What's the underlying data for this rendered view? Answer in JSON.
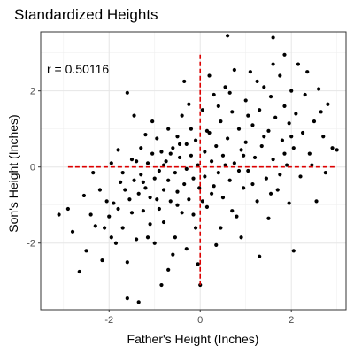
{
  "chart_data": {
    "type": "scatter",
    "title": "Standardized Heights",
    "xlabel": "Father's Height (Inches)",
    "ylabel": "Son's Height (Inches)",
    "annotation": "r = 0.50116",
    "xlim": [
      -3.5,
      3.2
    ],
    "ylim": [
      -3.75,
      3.55
    ],
    "x_ticks": [
      -2,
      0,
      2
    ],
    "y_ticks": [
      -2,
      0,
      2
    ],
    "x_tick_labels": [
      "-2",
      "0",
      "2"
    ],
    "y_tick_labels": [
      "-2",
      "0",
      "2"
    ],
    "grid": true,
    "point_color": "#000000",
    "reference_line_color": "#dd0000",
    "reference_lines": {
      "horizontal": {
        "y": 0,
        "x_from": -2.9,
        "x_to": 3.0
      },
      "vertical": {
        "x": 0,
        "y_from": -3.1,
        "y_to": 2.95
      }
    },
    "points": [
      [
        -3.1,
        -1.25
      ],
      [
        -2.9,
        -1.1
      ],
      [
        -2.8,
        -1.7
      ],
      [
        -2.65,
        -2.75
      ],
      [
        -2.5,
        -2.2
      ],
      [
        -2.4,
        -1.25
      ],
      [
        -2.3,
        -1.55
      ],
      [
        -2.2,
        -0.6
      ],
      [
        -2.15,
        -2.45
      ],
      [
        -2.05,
        -0.9
      ],
      [
        -2.0,
        -1.3
      ],
      [
        -1.95,
        -1.85
      ],
      [
        -1.9,
        -0.95
      ],
      [
        -1.85,
        -2.0
      ],
      [
        -1.8,
        -1.1
      ],
      [
        -1.75,
        -0.4
      ],
      [
        -1.7,
        -1.6
      ],
      [
        -1.65,
        -0.6
      ],
      [
        -1.6,
        -2.5
      ],
      [
        -1.55,
        -0.85
      ],
      [
        -1.5,
        0.2
      ],
      [
        -1.5,
        -1.2
      ],
      [
        -1.45,
        -0.35
      ],
      [
        -1.4,
        -1.9
      ],
      [
        -1.35,
        -0.7
      ],
      [
        -1.3,
        0.5
      ],
      [
        -1.3,
        -0.2
      ],
      [
        -1.25,
        -1.15
      ],
      [
        -1.2,
        -0.55
      ],
      [
        -1.15,
        0.1
      ],
      [
        -1.1,
        -1.5
      ],
      [
        -1.1,
        -0.8
      ],
      [
        -1.05,
        0.35
      ],
      [
        -1.0,
        -0.3
      ],
      [
        -1.0,
        -2.0
      ],
      [
        -0.95,
        0.75
      ],
      [
        -0.9,
        -0.1
      ],
      [
        -0.9,
        -1.1
      ],
      [
        -0.85,
        0.4
      ],
      [
        -0.8,
        -0.6
      ],
      [
        -0.8,
        -1.45
      ],
      [
        -0.75,
        0.15
      ],
      [
        -0.7,
        -0.35
      ],
      [
        -0.7,
        1.0
      ],
      [
        -0.65,
        -0.9
      ],
      [
        -0.6,
        0.5
      ],
      [
        -0.6,
        -2.3
      ],
      [
        -0.55,
        -0.15
      ],
      [
        -0.5,
        0.8
      ],
      [
        -0.5,
        -0.65
      ],
      [
        -0.45,
        0.25
      ],
      [
        -0.4,
        -1.2
      ],
      [
        -0.4,
        1.35
      ],
      [
        -0.35,
        -0.45
      ],
      [
        -0.3,
        0.6
      ],
      [
        -0.3,
        -0.05
      ],
      [
        -0.25,
        -0.85
      ],
      [
        -0.2,
        1.0
      ],
      [
        -0.2,
        0.3
      ],
      [
        -0.15,
        -0.3
      ],
      [
        -0.1,
        0.7
      ],
      [
        -0.1,
        -1.6
      ],
      [
        -0.05,
        0.05
      ],
      [
        -0.02,
        -0.55
      ],
      [
        0.05,
        1.5
      ],
      [
        0.1,
        0.4
      ],
      [
        0.1,
        -0.25
      ],
      [
        0.15,
        -1.05
      ],
      [
        0.2,
        0.9
      ],
      [
        0.25,
        0.15
      ],
      [
        0.3,
        -0.5
      ],
      [
        0.3,
        1.9
      ],
      [
        0.35,
        0.55
      ],
      [
        0.4,
        -0.15
      ],
      [
        0.45,
        1.2
      ],
      [
        0.5,
        -0.8
      ],
      [
        0.5,
        0.3
      ],
      [
        0.55,
        2.1
      ],
      [
        0.6,
        0.75
      ],
      [
        0.65,
        -0.35
      ],
      [
        0.7,
        1.45
      ],
      [
        0.75,
        0.1
      ],
      [
        0.8,
        -1.3
      ],
      [
        0.85,
        1.0
      ],
      [
        0.9,
        0.45
      ],
      [
        0.95,
        -0.55
      ],
      [
        1.0,
        1.75
      ],
      [
        1.0,
        0.65
      ],
      [
        1.05,
        -0.1
      ],
      [
        1.1,
        2.5
      ],
      [
        1.15,
        1.1
      ],
      [
        1.2,
        0.25
      ],
      [
        1.25,
        -0.9
      ],
      [
        1.3,
        1.5
      ],
      [
        1.35,
        0.55
      ],
      [
        1.4,
        2.1
      ],
      [
        1.45,
        -0.3
      ],
      [
        1.5,
        0.95
      ],
      [
        1.55,
        1.85
      ],
      [
        1.6,
        0.2
      ],
      [
        1.65,
        1.3
      ],
      [
        1.7,
        -0.6
      ],
      [
        1.75,
        2.4
      ],
      [
        1.8,
        0.7
      ],
      [
        1.85,
        1.6
      ],
      [
        1.9,
        0.05
      ],
      [
        1.95,
        1.15
      ],
      [
        2.0,
        2.0
      ],
      [
        2.05,
        0.5
      ],
      [
        2.1,
        1.4
      ],
      [
        2.2,
        -0.25
      ],
      [
        2.25,
        0.9
      ],
      [
        2.3,
        1.9
      ],
      [
        2.4,
        0.35
      ],
      [
        2.5,
        1.2
      ],
      [
        2.6,
        2.05
      ],
      [
        2.7,
        0.8
      ],
      [
        2.8,
        1.65
      ],
      [
        2.9,
        0.5
      ],
      [
        2.55,
        -0.9
      ],
      [
        -1.6,
        1.95
      ],
      [
        -0.85,
        -3.1
      ],
      [
        0.0,
        -3.1
      ],
      [
        -1.6,
        -3.45
      ],
      [
        -1.35,
        -3.55
      ],
      [
        -0.7,
        -2.7
      ],
      [
        1.85,
        2.95
      ],
      [
        1.6,
        3.4
      ],
      [
        0.6,
        3.45
      ],
      [
        2.05,
        -2.2
      ],
      [
        -0.05,
        -2.55
      ],
      [
        0.9,
        -1.85
      ],
      [
        1.3,
        -2.35
      ],
      [
        2.35,
        2.5
      ],
      [
        -0.35,
        2.25
      ],
      [
        -2.35,
        -0.15
      ],
      [
        -1.95,
        0.1
      ],
      [
        -1.45,
        1.35
      ],
      [
        -1.2,
        0.85
      ],
      [
        0.35,
        -2.05
      ],
      [
        0.75,
        2.55
      ],
      [
        1.95,
        -0.95
      ],
      [
        2.15,
        2.7
      ],
      [
        -2.55,
        -0.75
      ],
      [
        -0.25,
        1.65
      ],
      [
        0.45,
        -1.6
      ],
      [
        1.5,
        -1.35
      ],
      [
        -1.05,
        1.2
      ],
      [
        0.65,
        1.95
      ],
      [
        1.25,
        2.25
      ],
      [
        -0.55,
        -1.85
      ],
      [
        1.75,
        -0.2
      ],
      [
        -1.8,
        0.45
      ],
      [
        0.15,
        0.95
      ],
      [
        0.85,
        -0.1
      ],
      [
        -0.15,
        -1.25
      ],
      [
        0.55,
        0.05
      ],
      [
        1.05,
        1.35
      ],
      [
        -0.45,
        0.6
      ],
      [
        1.4,
        0.8
      ],
      [
        -1.25,
        -0.4
      ],
      [
        0.25,
        -0.7
      ],
      [
        -0.65,
        0.35
      ],
      [
        0.95,
        0.3
      ],
      [
        -0.95,
        -0.85
      ],
      [
        2.45,
        0.05
      ],
      [
        -2.1,
        -1.6
      ],
      [
        -0.3,
        -2.15
      ],
      [
        1.15,
        -0.45
      ],
      [
        0.2,
        2.4
      ],
      [
        -1.7,
        -0.15
      ],
      [
        2.75,
        -0.15
      ],
      [
        3.0,
        0.45
      ],
      [
        2.65,
        1.45
      ],
      [
        -0.8,
        0.05
      ],
      [
        1.55,
        -0.7
      ],
      [
        0.4,
        1.6
      ],
      [
        -0.5,
        -1.0
      ],
      [
        1.85,
        0.35
      ],
      [
        -1.4,
        0.15
      ],
      [
        0.7,
        -1.15
      ],
      [
        2.0,
        0.8
      ],
      [
        -1.15,
        -1.85
      ],
      [
        0.05,
        -0.9
      ],
      [
        1.6,
        2.7
      ]
    ]
  }
}
